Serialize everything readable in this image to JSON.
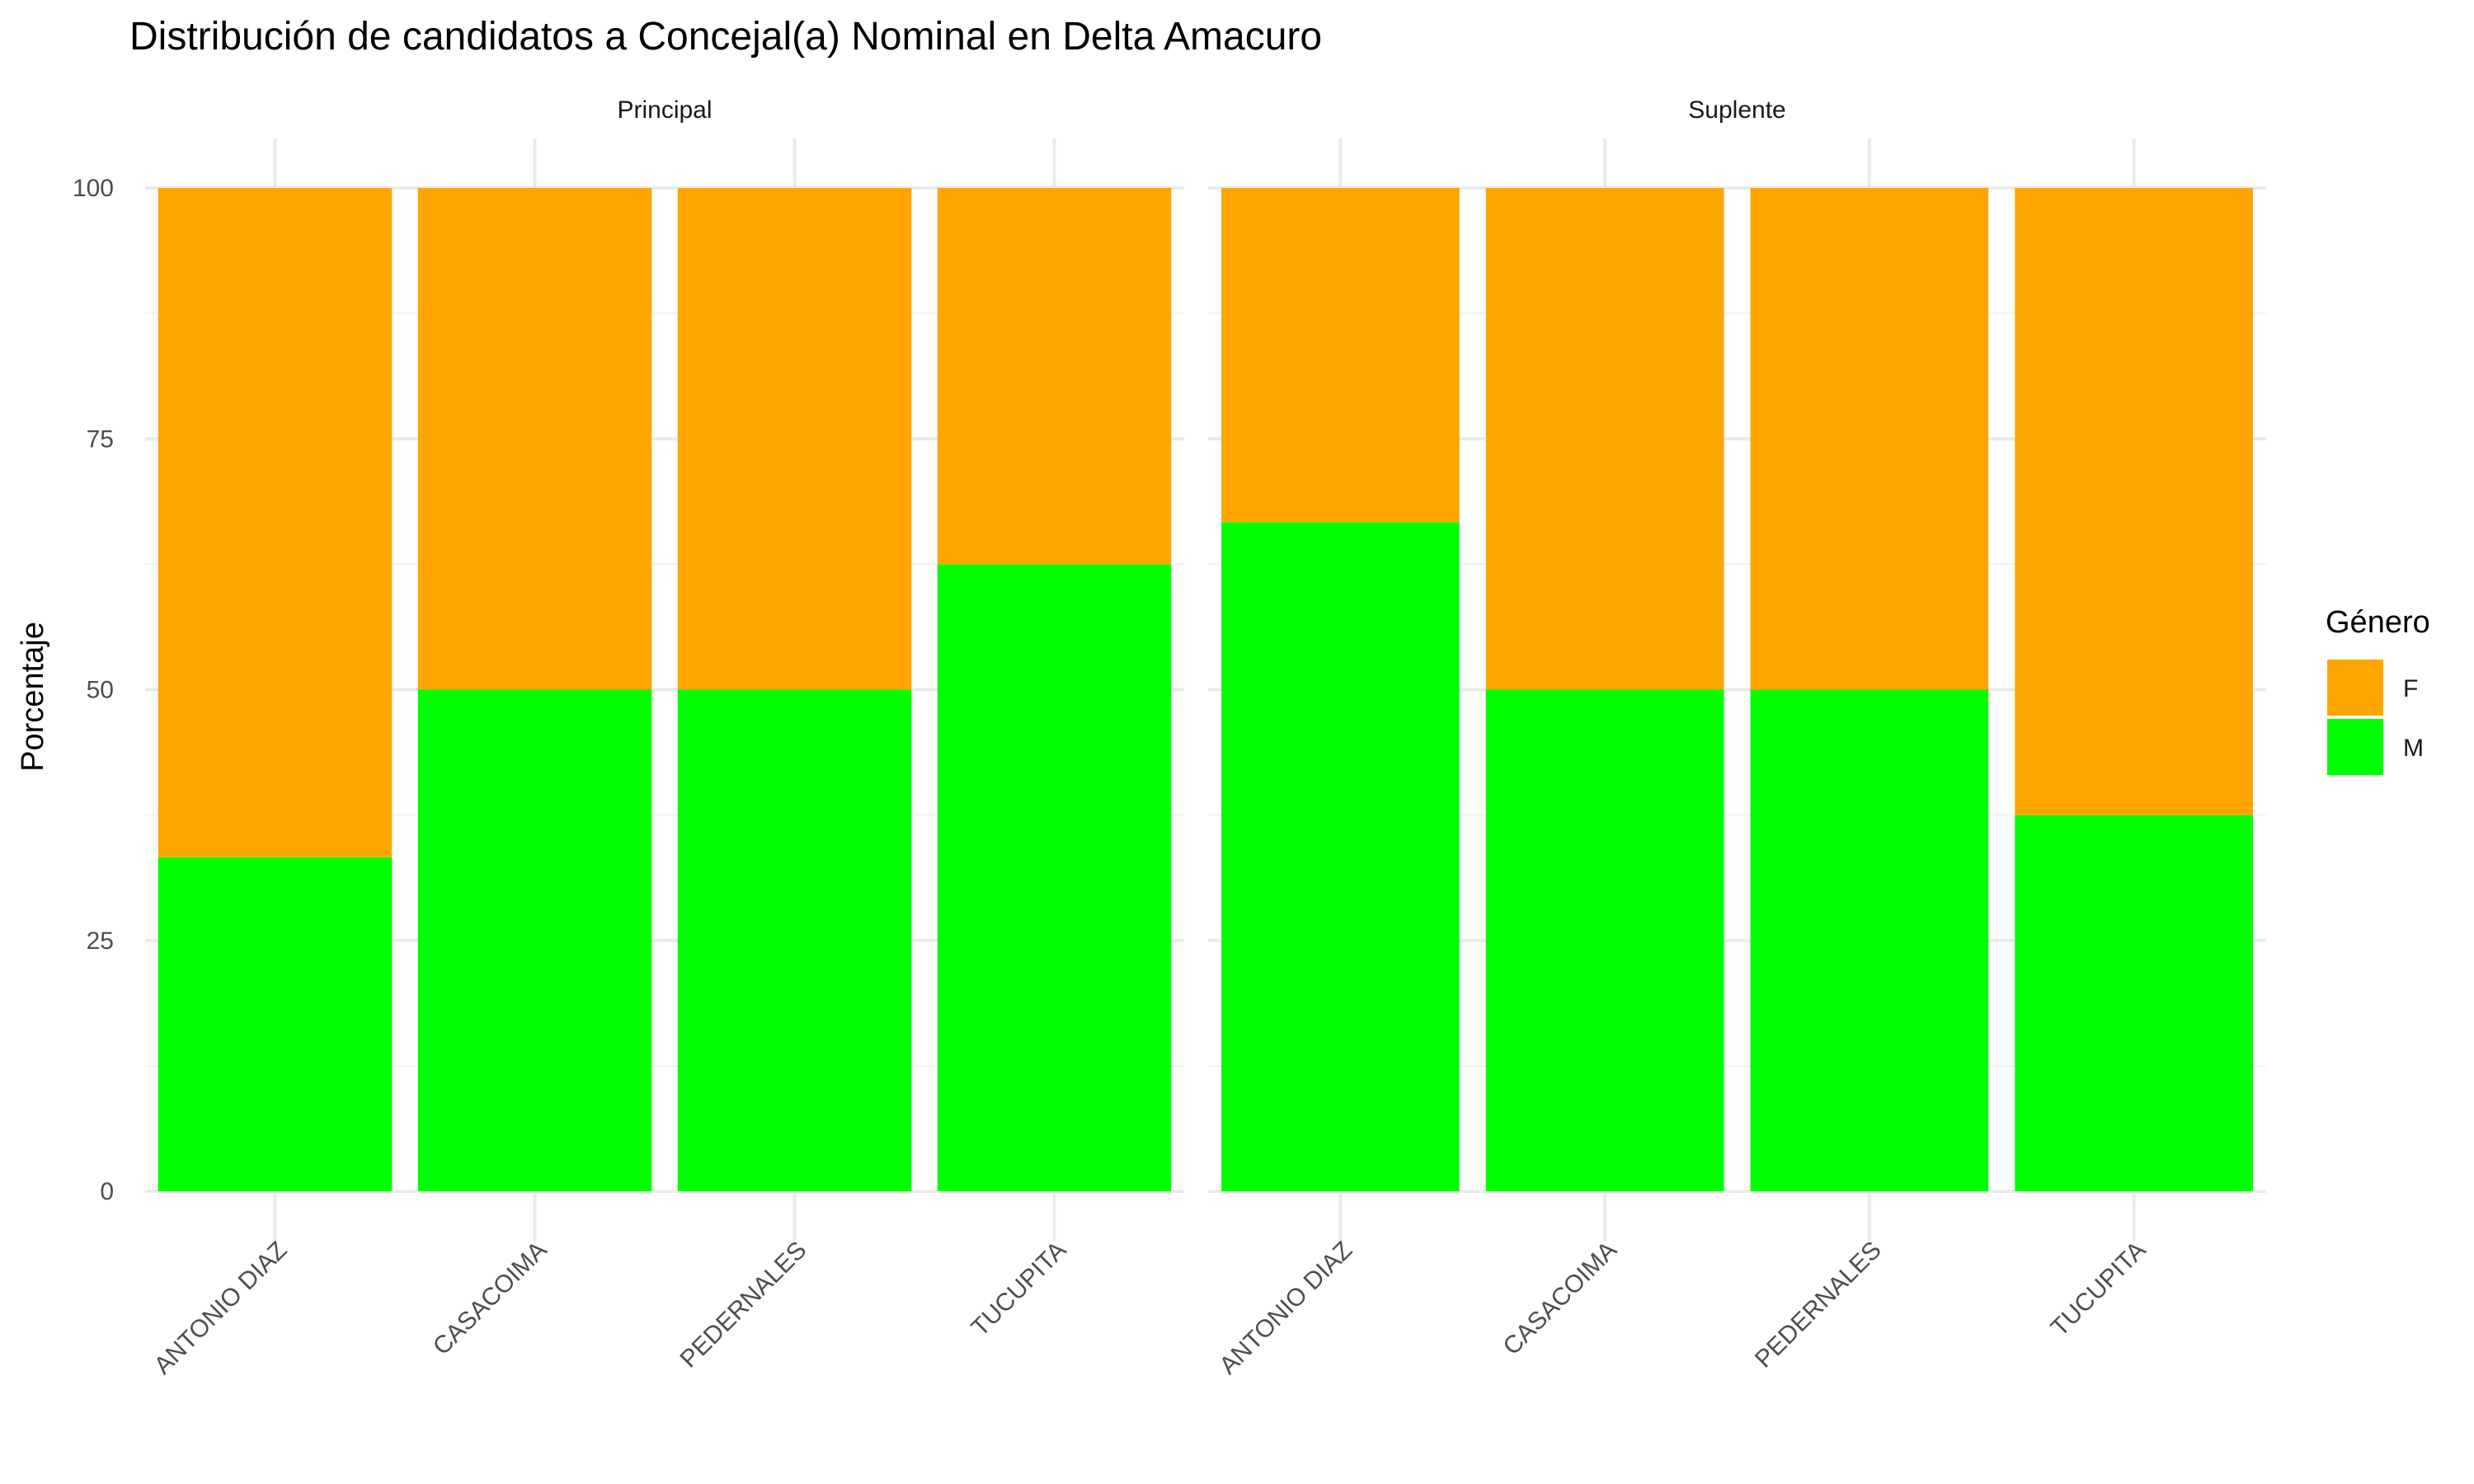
{
  "chart_data": {
    "type": "bar",
    "stacked": true,
    "title": "Distribución de candidatos a Concejal(a) Nominal en Delta Amacuro",
    "xlabel": "",
    "ylabel": "Porcentaje",
    "ylim": [
      0,
      100
    ],
    "yticks": [
      0,
      25,
      50,
      75,
      100
    ],
    "grid": true,
    "legend": {
      "title": "Género",
      "position": "right",
      "entries": [
        "F",
        "M"
      ]
    },
    "colors": {
      "F": "#FFA500",
      "M": "#00FF00"
    },
    "categories": [
      "ANTONIO DIAZ",
      "CASACOIMA",
      "PEDERNALES",
      "TUCUPITA"
    ],
    "facets": [
      {
        "label": "Principal",
        "series": [
          {
            "name": "M",
            "values": [
              33.3,
              50,
              50,
              62.5
            ]
          },
          {
            "name": "F",
            "values": [
              66.7,
              50,
              50,
              37.5
            ]
          }
        ]
      },
      {
        "label": "Suplente",
        "series": [
          {
            "name": "M",
            "values": [
              66.7,
              50,
              50,
              37.5
            ]
          },
          {
            "name": "F",
            "values": [
              33.3,
              50,
              50,
              62.5
            ]
          }
        ]
      }
    ]
  }
}
